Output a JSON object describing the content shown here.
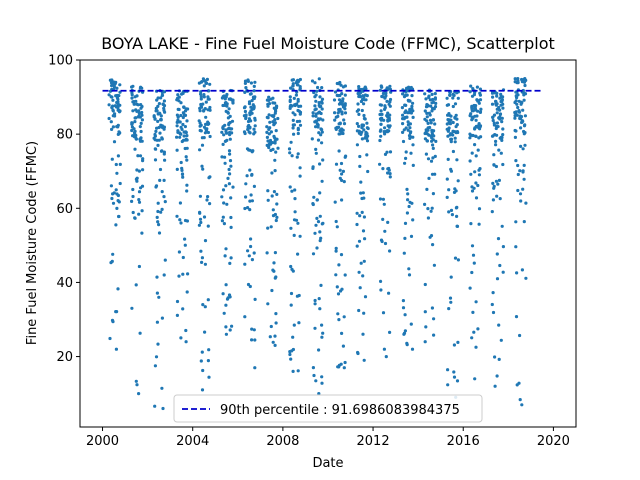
{
  "chart_data": {
    "type": "scatter",
    "title": "BOYA LAKE - Fine Fuel Moisture Code (FFMC), Scatterplot",
    "xlabel": "Date",
    "ylabel": "Fine Fuel Moisture Code (FFMC)",
    "xlim": [
      "1999-01-01",
      "2021-01-01"
    ],
    "ylim": [
      1,
      100
    ],
    "x_ticks": [
      "2000",
      "2004",
      "2008",
      "2012",
      "2016",
      "2020"
    ],
    "y_ticks": [
      "20",
      "40",
      "60",
      "80",
      "100"
    ],
    "point_color": "#1f77b4",
    "reference_line": {
      "label": "90th percentile : 91.6986083984375",
      "value": 91.6986083984375,
      "color": "#0000cc",
      "style": "dashed"
    },
    "legend_position": "lower-center",
    "grid": false,
    "seasons": [
      {
        "year": 2000,
        "fire_season": [
          "2000-04-15",
          "2000-10-15"
        ],
        "high_band": [
          80,
          95
        ],
        "min": 22
      },
      {
        "year": 2001,
        "fire_season": [
          "2001-04-15",
          "2001-10-15"
        ],
        "high_band": [
          78,
          93
        ],
        "min": 10
      },
      {
        "year": 2002,
        "fire_season": [
          "2002-04-15",
          "2002-10-15"
        ],
        "high_band": [
          78,
          92
        ],
        "min": 6
      },
      {
        "year": 2003,
        "fire_season": [
          "2003-04-15",
          "2003-10-15"
        ],
        "high_band": [
          78,
          92
        ],
        "min": 24
      },
      {
        "year": 2004,
        "fire_season": [
          "2004-04-15",
          "2004-10-15"
        ],
        "high_band": [
          80,
          95
        ],
        "min": 11
      },
      {
        "year": 2005,
        "fire_season": [
          "2005-04-15",
          "2005-10-15"
        ],
        "high_band": [
          78,
          92
        ],
        "min": 26
      },
      {
        "year": 2006,
        "fire_season": [
          "2006-04-15",
          "2006-10-15"
        ],
        "high_band": [
          80,
          95
        ],
        "min": 17
      },
      {
        "year": 2007,
        "fire_season": [
          "2007-04-15",
          "2007-10-15"
        ],
        "high_band": [
          76,
          90
        ],
        "min": 23
      },
      {
        "year": 2008,
        "fire_season": [
          "2008-04-15",
          "2008-10-15"
        ],
        "high_band": [
          80,
          95
        ],
        "min": 16
      },
      {
        "year": 2009,
        "fire_season": [
          "2009-04-15",
          "2009-10-15"
        ],
        "high_band": [
          80,
          95
        ],
        "min": 10
      },
      {
        "year": 2010,
        "fire_season": [
          "2010-04-15",
          "2010-10-15"
        ],
        "high_band": [
          80,
          94
        ],
        "min": 17
      },
      {
        "year": 2011,
        "fire_season": [
          "2011-04-15",
          "2011-10-15"
        ],
        "high_band": [
          78,
          93
        ],
        "min": 19
      },
      {
        "year": 2012,
        "fire_season": [
          "2012-04-15",
          "2012-10-15"
        ],
        "high_band": [
          80,
          93
        ],
        "min": 20
      },
      {
        "year": 2013,
        "fire_season": [
          "2013-04-15",
          "2013-10-15"
        ],
        "high_band": [
          78,
          93
        ],
        "min": 22
      },
      {
        "year": 2014,
        "fire_season": [
          "2014-04-15",
          "2014-10-15"
        ],
        "high_band": [
          78,
          92
        ],
        "min": 24
      },
      {
        "year": 2015,
        "fire_season": [
          "2015-04-15",
          "2015-10-15"
        ],
        "high_band": [
          78,
          92
        ],
        "min": 9
      },
      {
        "year": 2016,
        "fire_season": [
          "2016-04-15",
          "2016-10-15"
        ],
        "high_band": [
          78,
          93
        ],
        "min": 14
      },
      {
        "year": 2017,
        "fire_season": [
          "2017-04-15",
          "2017-10-15"
        ],
        "high_band": [
          78,
          92
        ],
        "min": 12
      },
      {
        "year": 2018,
        "fire_season": [
          "2018-04-15",
          "2018-10-15"
        ],
        "high_band": [
          80,
          95
        ],
        "min": 7
      }
    ]
  }
}
